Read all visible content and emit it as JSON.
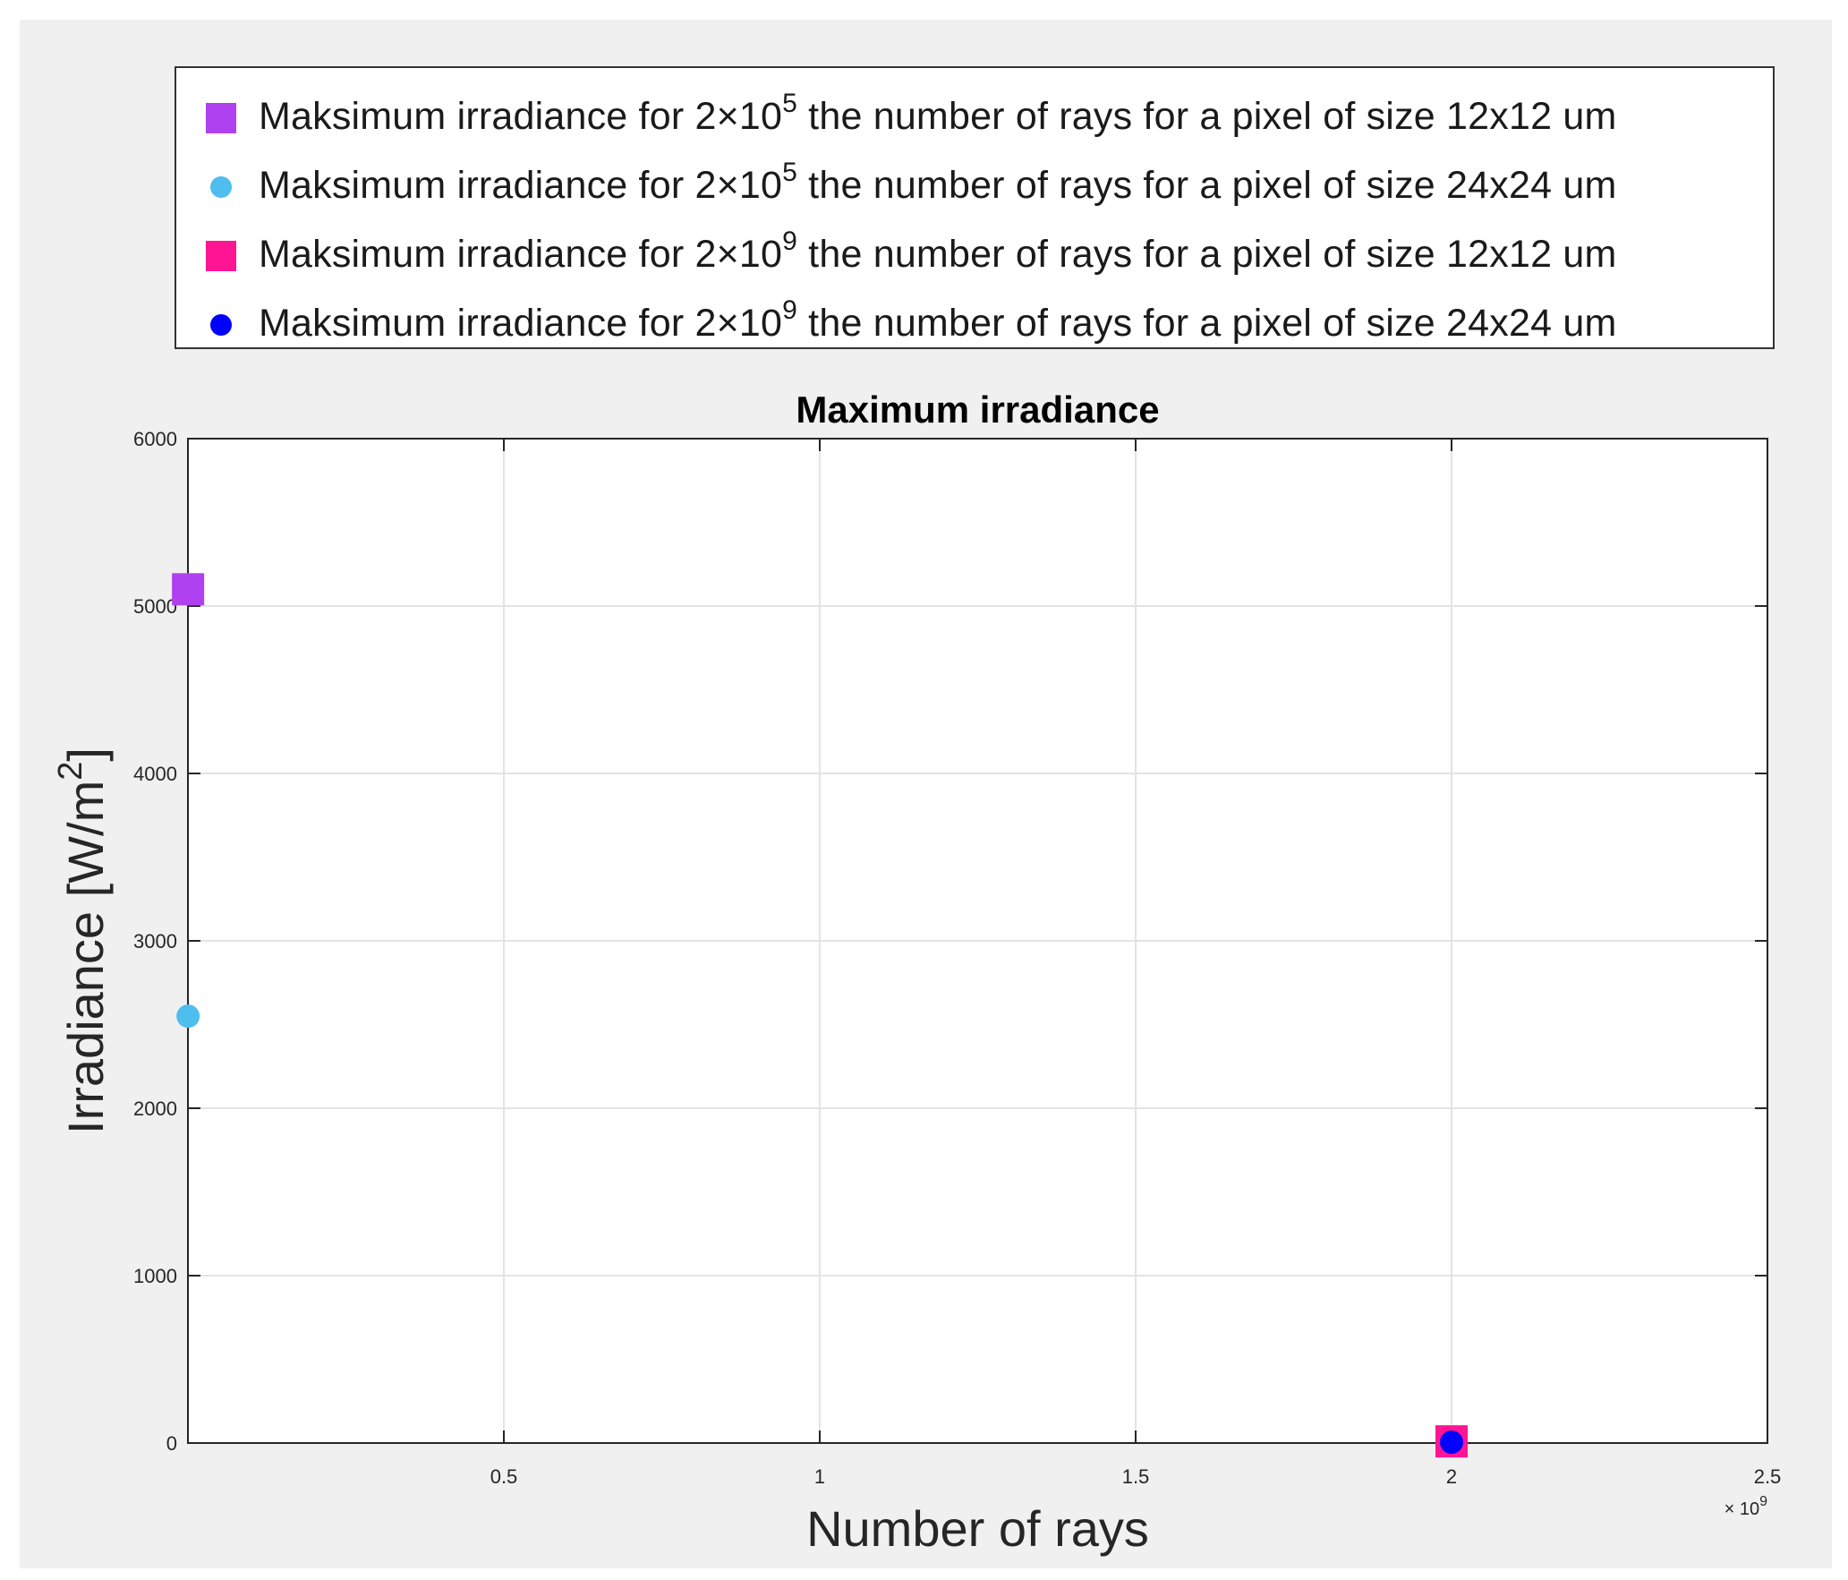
{
  "chart_data": {
    "type": "scatter",
    "title": "Maximum irradiance",
    "xlabel": "Number of rays",
    "ylabel": "Irradiance [W/m",
    "ylabel_sup": "2",
    "ylabel_end": "]",
    "x_exponent_base": "× 10",
    "x_exponent_power": "9",
    "xlim": [
      0,
      2.5
    ],
    "ylim": [
      0,
      6000
    ],
    "x_ticks": [
      "0.5",
      "1",
      "1.5",
      "2",
      "2.5"
    ],
    "x_tick_values": [
      0.5,
      1,
      1.5,
      2,
      2.5
    ],
    "y_ticks": [
      "0",
      "1000",
      "2000",
      "3000",
      "4000",
      "5000",
      "6000"
    ],
    "y_tick_values": [
      0,
      1000,
      2000,
      3000,
      4000,
      5000,
      6000
    ],
    "grid": true,
    "legend_position": "top",
    "series": [
      {
        "label_prefix": "Maksimum irradiance for 2×10",
        "label_power": "5",
        "label_suffix": " the number of rays for a pixel of size 12x12 um",
        "marker": "square",
        "color": "#b041f0",
        "points": [
          {
            "x": 0.0002,
            "y": 5100
          }
        ]
      },
      {
        "label_prefix": "Maksimum irradiance for 2×10",
        "label_power": "5",
        "label_suffix": " the number of rays for a pixel of size 24x24 um",
        "marker": "circle",
        "color": "#4dbeee",
        "points": [
          {
            "x": 0.0002,
            "y": 2550
          }
        ]
      },
      {
        "label_prefix": "Maksimum irradiance for 2×10",
        "label_power": "9",
        "label_suffix": " the number of rays for a pixel of size 12x12 um",
        "marker": "square",
        "color": "#ff1493",
        "points": [
          {
            "x": 2,
            "y": 10
          }
        ]
      },
      {
        "label_prefix": "Maksimum irradiance for 2×10",
        "label_power": "9",
        "label_suffix": " the number of rays for a pixel of size 24x24 um",
        "marker": "circle",
        "color": "#0000ff",
        "points": [
          {
            "x": 2,
            "y": 5
          }
        ]
      }
    ]
  }
}
